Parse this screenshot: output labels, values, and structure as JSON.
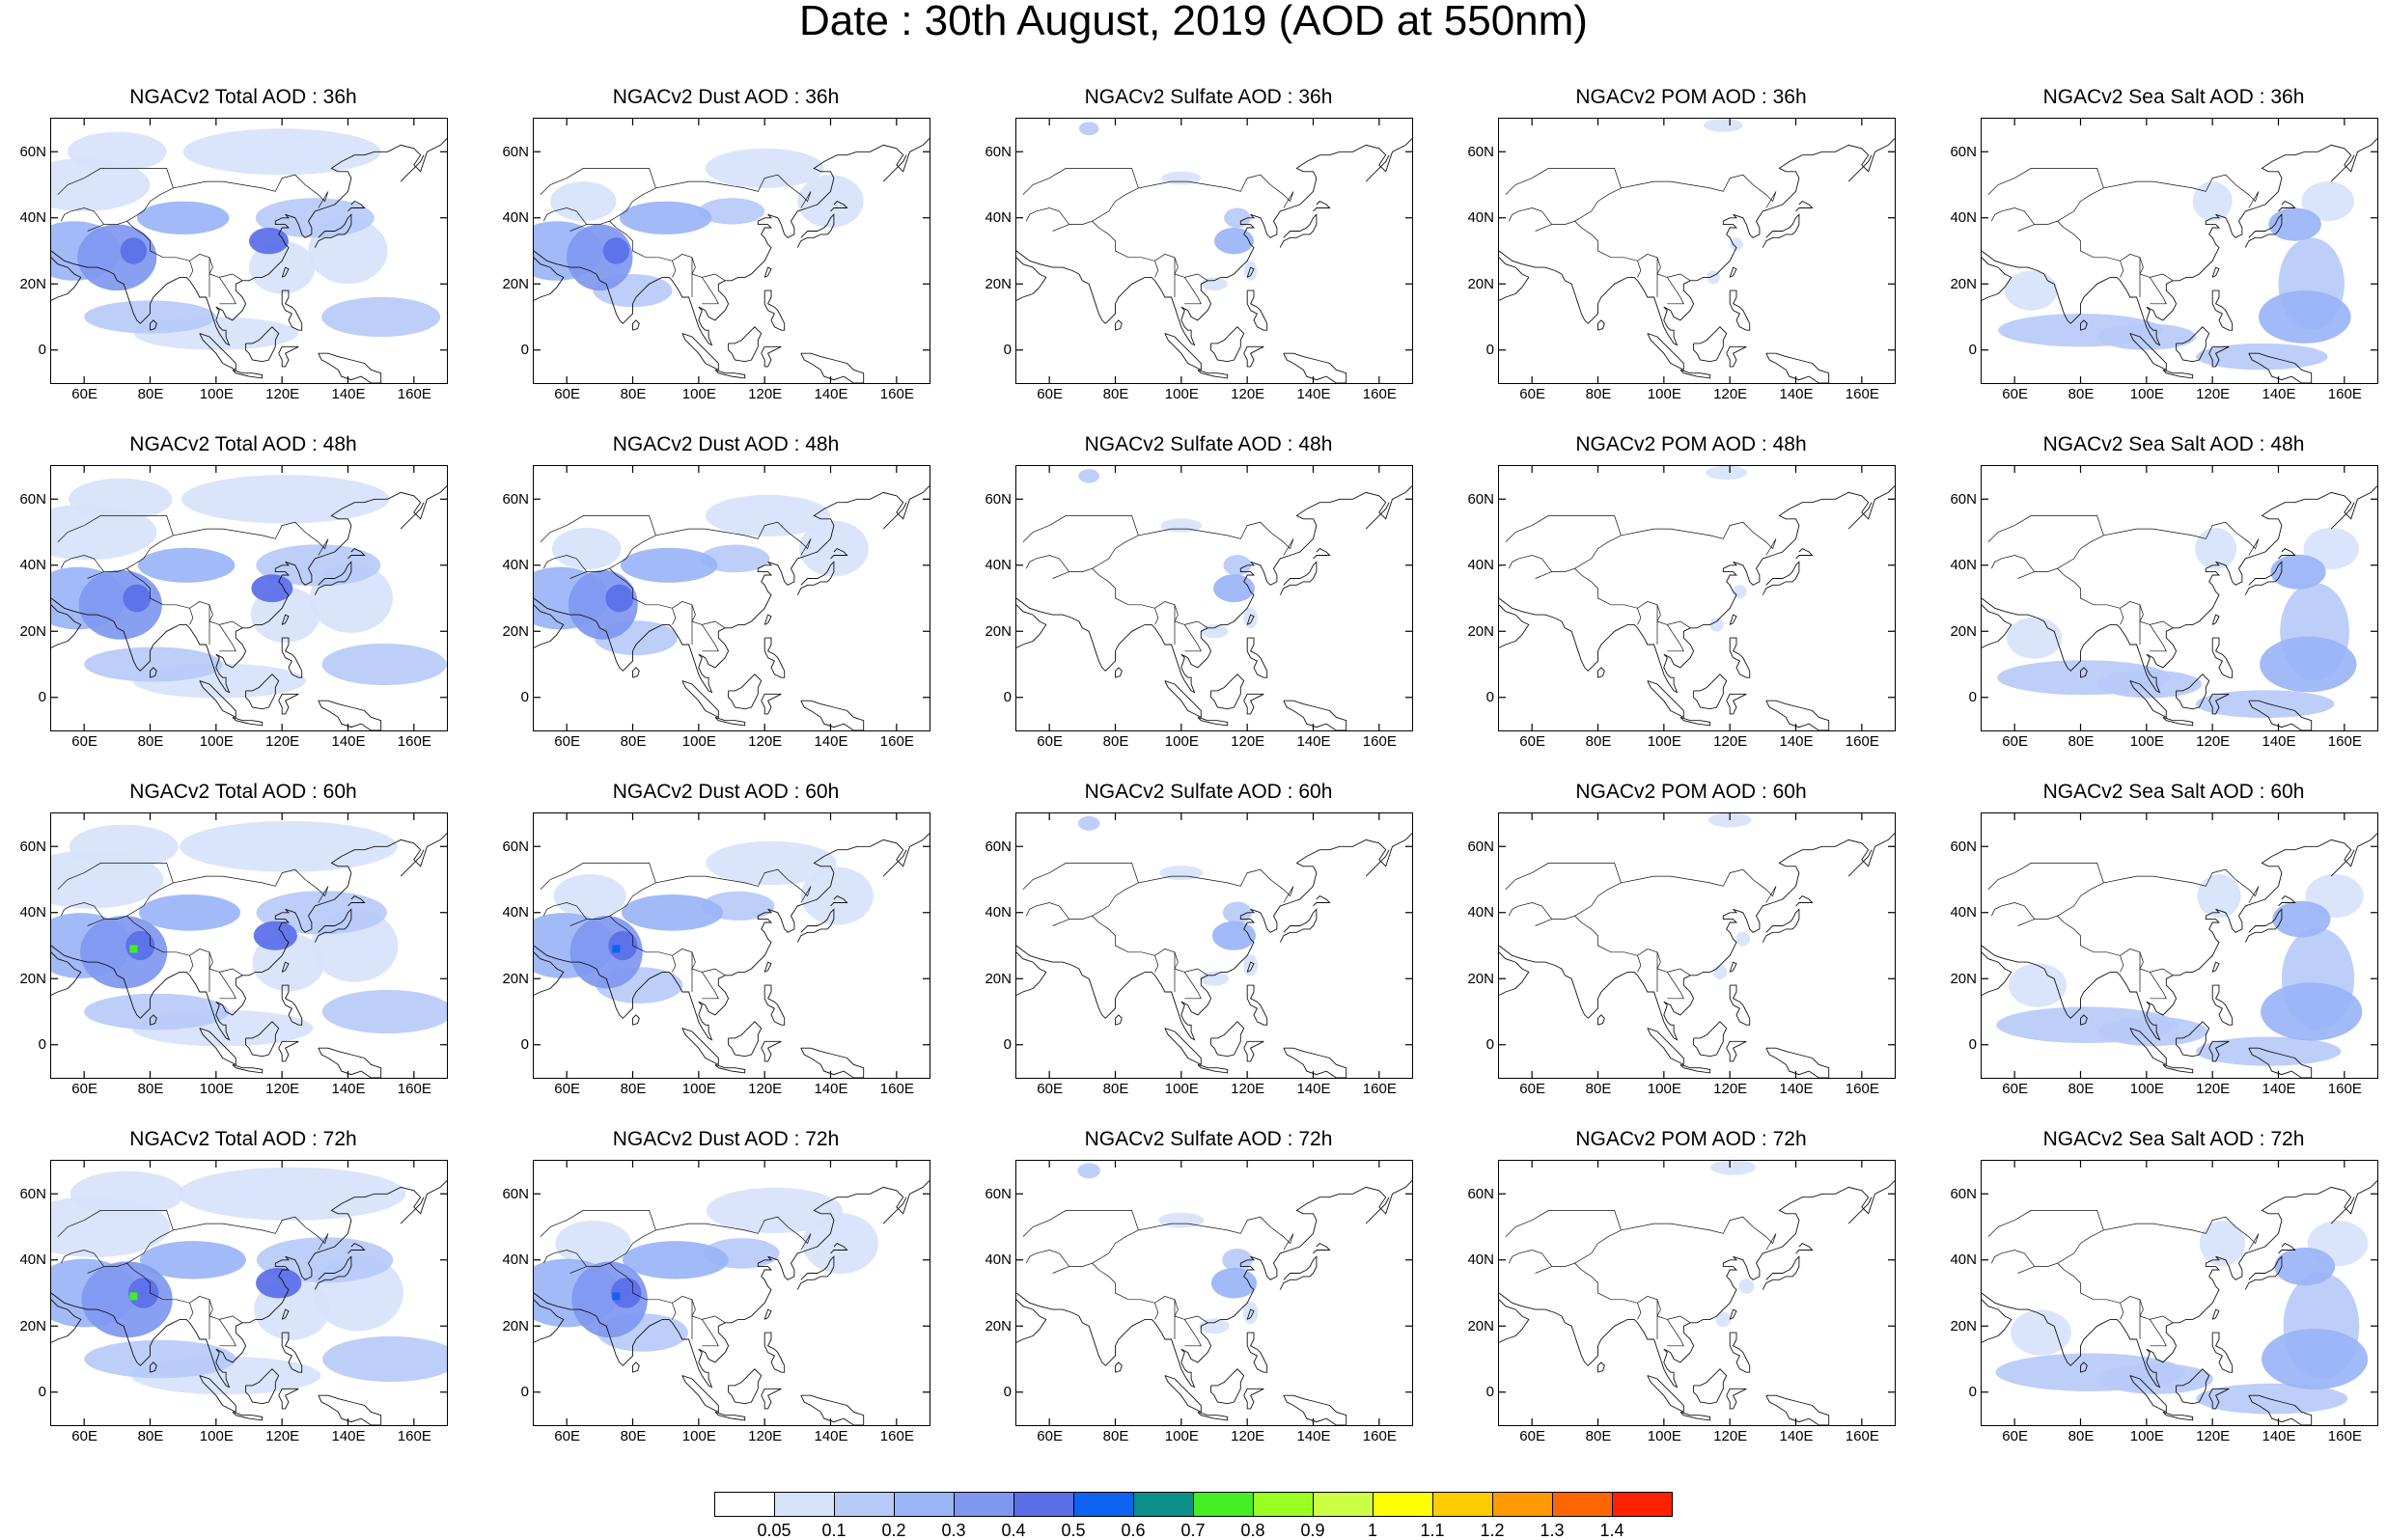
{
  "title": "Date : 30th August, 2019 (AOD at 550nm)",
  "axes": {
    "lat_ticks": [
      "60N",
      "40N",
      "20N",
      "0"
    ],
    "lon_ticks": [
      "60E",
      "80E",
      "100E",
      "120E",
      "140E",
      "160E"
    ],
    "lat_range": [
      -10,
      70
    ],
    "lon_range": [
      50,
      170
    ]
  },
  "rows": [
    [
      "NGACv2 Total AOD : 36h",
      "NGACv2 Dust AOD : 36h",
      "NGACv2 Sulfate AOD : 36h",
      "NGACv2 POM AOD : 36h",
      "NGACv2 Sea Salt AOD : 36h"
    ],
    [
      "NGACv2 Total AOD : 48h",
      "NGACv2 Dust AOD : 48h",
      "NGACv2 Sulfate AOD : 48h",
      "NGACv2 POM AOD : 48h",
      "NGACv2 Sea Salt AOD : 48h"
    ],
    [
      "NGACv2 Total AOD : 60h",
      "NGACv2 Dust AOD : 60h",
      "NGACv2 Sulfate AOD : 60h",
      "NGACv2 POM AOD : 60h",
      "NGACv2 Sea Salt AOD : 60h"
    ],
    [
      "NGACv2 Total AOD : 72h",
      "NGACv2 Dust AOD : 72h",
      "NGACv2 Sulfate AOD : 72h",
      "NGACv2 POM AOD : 72h",
      "NGACv2 Sea Salt  AOD : 72h"
    ]
  ],
  "colorbar": {
    "labels": [
      "0.05",
      "0.1",
      "0.2",
      "0.3",
      "0.4",
      "0.5",
      "0.6",
      "0.7",
      "0.8",
      "0.9",
      "1",
      "1.1",
      "1.2",
      "1.3",
      "1.4"
    ],
    "colors": [
      "#ffffff",
      "#d7e3fb",
      "#b7caf8",
      "#9ab4f6",
      "#7f97f0",
      "#5a6ee8",
      "#0d63f0",
      "#0a8f8a",
      "#44ee22",
      "#99ff22",
      "#ccff44",
      "#ffff00",
      "#ffcc00",
      "#ff9900",
      "#ff6600",
      "#ff2200"
    ]
  },
  "colors": {
    "map_outline": "#000000",
    "coast": "#111111"
  }
}
